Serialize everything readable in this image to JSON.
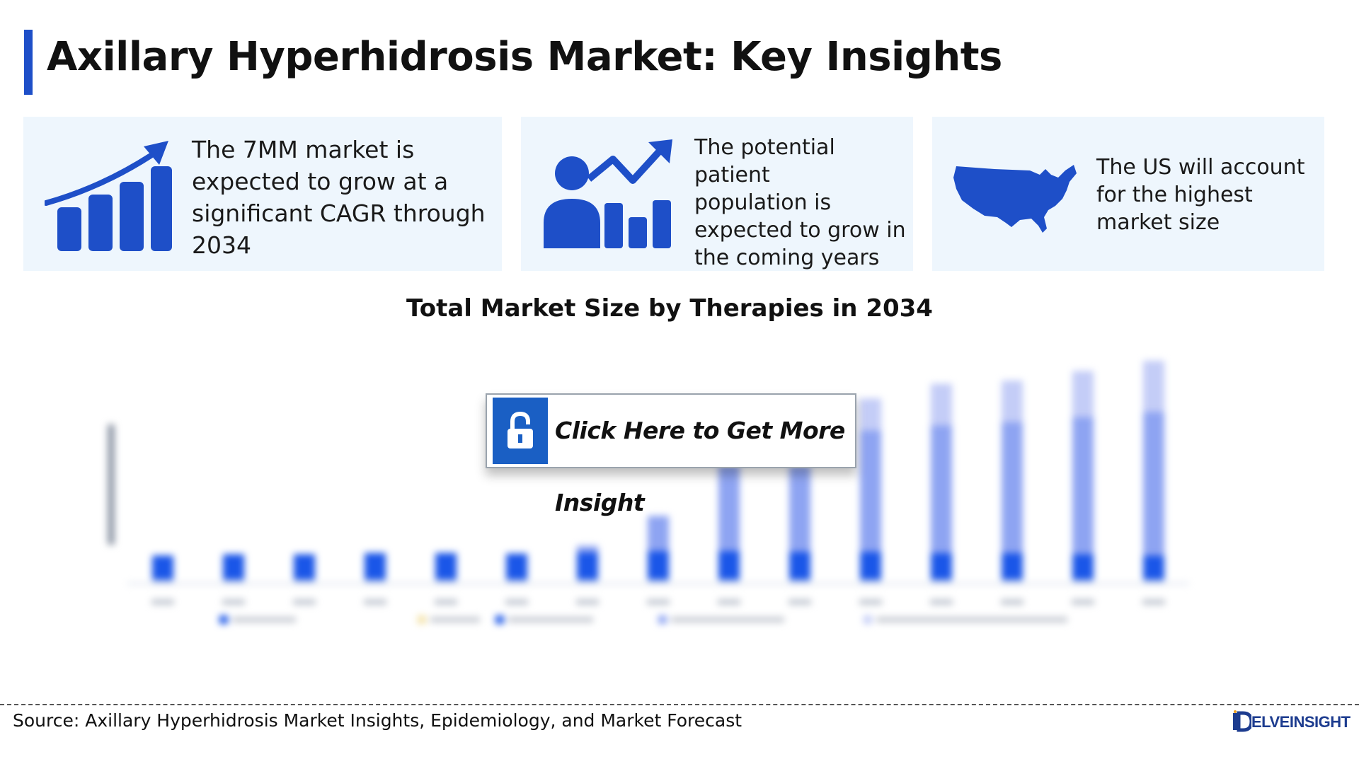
{
  "header": {
    "title": "Axillary Hyperhidrosis Market: Key Insights",
    "accent_color": "#1e4fc8"
  },
  "cards": [
    {
      "icon": "growth-bar-chart-icon",
      "lines": [
        "The 7MM market is",
        "expected to grow at a",
        "significant CAGR through",
        "2034"
      ]
    },
    {
      "icon": "patient-growth-icon",
      "lines": [
        "The potential patient",
        "population is",
        "expected to grow in",
        "the coming years"
      ]
    },
    {
      "icon": "us-map-icon",
      "lines": [
        "The US will account",
        "for the highest",
        "market size"
      ]
    }
  ],
  "chart": {
    "title": "Total Market Size by Therapies in 2034",
    "unlock_label": "Click Here to Get More Insight",
    "unlock_icon": "lock-icon"
  },
  "chart_data": {
    "type": "bar",
    "stacked": true,
    "blurred": true,
    "categories": [
      "",
      "",
      "",
      "",
      "",
      "",
      "",
      "",
      "",
      "",
      "",
      "",
      "",
      "",
      ""
    ],
    "series": [
      {
        "color": "#c9d4f0",
        "values": [
          6,
          6,
          6,
          6,
          6,
          6,
          6,
          6,
          6,
          6,
          6,
          6,
          6,
          6,
          6
        ]
      },
      {
        "color": "#1a56e8",
        "values": [
          38,
          40,
          40,
          42,
          42,
          41,
          43,
          45,
          45,
          44,
          44,
          42,
          42,
          40,
          38
        ]
      },
      {
        "color": "#8ea4f2",
        "values": [
          0,
          0,
          0,
          0,
          0,
          0,
          10,
          55,
          135,
          135,
          190,
          200,
          205,
          215,
          225
        ]
      },
      {
        "color": "#c4cdf7",
        "values": [
          0,
          0,
          0,
          0,
          0,
          0,
          0,
          0,
          0,
          0,
          50,
          65,
          65,
          72,
          80
        ]
      }
    ],
    "legend_position": "bottom"
  },
  "footer": {
    "source": "Source: Axillary Hyperhidrosis Market Insights, Epidemiology, and Market Forecast",
    "logo_text": "ELVEINSIGHT",
    "logo_icon": "delveinsight-logo-icon"
  }
}
